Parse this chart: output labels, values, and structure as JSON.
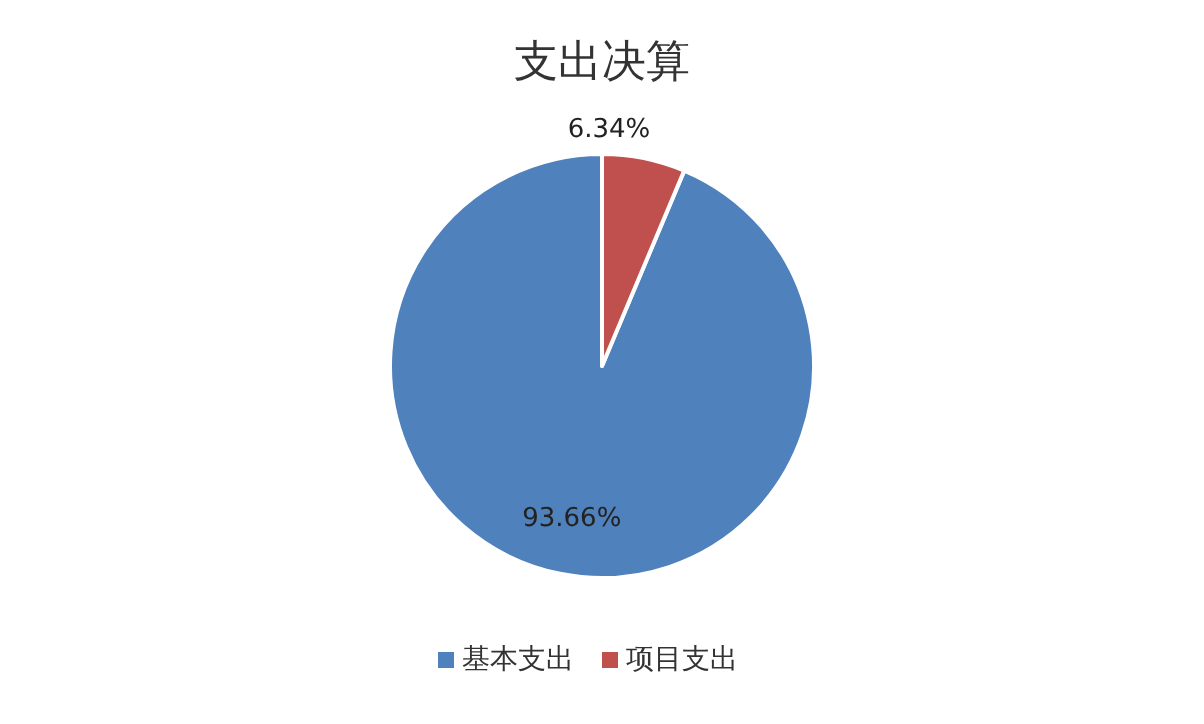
{
  "chart_data": {
    "type": "pie",
    "title": "支出决算",
    "categories": [
      "基本支出",
      "项目支出"
    ],
    "values": [
      93.66,
      6.34
    ],
    "value_labels": [
      "93.66%",
      "6.34%"
    ],
    "colors": [
      "#4f81bd",
      "#c0504d"
    ],
    "legend": "bottom"
  }
}
